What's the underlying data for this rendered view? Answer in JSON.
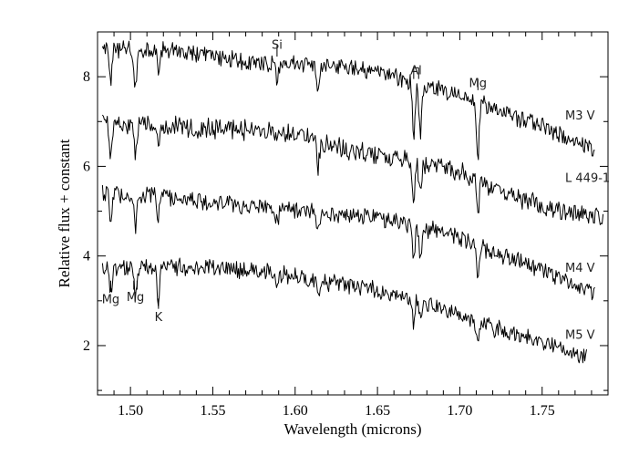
{
  "chart_data": {
    "type": "line",
    "xlabel": "Wavelength (microns)",
    "ylabel": "Relative flux + constant",
    "xlim": [
      1.48,
      1.79
    ],
    "ylim": [
      0.9,
      9.0
    ],
    "x_ticks": [
      1.5,
      1.55,
      1.6,
      1.65,
      1.7,
      1.75
    ],
    "x_tick_labels": [
      "1.50",
      "1.55",
      "1.60",
      "1.65",
      "1.70",
      "1.75"
    ],
    "y_ticks": [
      2,
      4,
      6,
      8
    ],
    "y_tick_labels": [
      "2",
      "4",
      "6",
      "8"
    ],
    "grid": false,
    "series": [
      {
        "name": "M3 V",
        "x_range": [
          1.483,
          1.782
        ],
        "noise": 0.17,
        "anchors": [
          [
            1.48,
            8.6
          ],
          [
            1.52,
            8.6
          ],
          [
            1.55,
            8.45
          ],
          [
            1.58,
            8.3
          ],
          [
            1.6,
            8.3
          ],
          [
            1.63,
            8.2
          ],
          [
            1.65,
            8.1
          ],
          [
            1.67,
            7.9
          ],
          [
            1.7,
            7.6
          ],
          [
            1.72,
            7.3
          ],
          [
            1.75,
            6.9
          ],
          [
            1.78,
            6.4
          ]
        ],
        "absorptions": [
          [
            1.488,
            0.7
          ],
          [
            1.503,
            0.9
          ],
          [
            1.517,
            0.5
          ],
          [
            1.589,
            0.4
          ],
          [
            1.614,
            0.6
          ],
          [
            1.672,
            1.3
          ],
          [
            1.676,
            1.1
          ],
          [
            1.711,
            1.2
          ]
        ]
      },
      {
        "name": "L 449-1",
        "x_range": [
          1.483,
          1.787
        ],
        "noise": 0.2,
        "anchors": [
          [
            1.48,
            7.0
          ],
          [
            1.52,
            6.9
          ],
          [
            1.55,
            6.85
          ],
          [
            1.58,
            6.8
          ],
          [
            1.6,
            6.7
          ],
          [
            1.62,
            6.45
          ],
          [
            1.65,
            6.25
          ],
          [
            1.68,
            6.0
          ],
          [
            1.7,
            5.9
          ],
          [
            1.72,
            5.5
          ],
          [
            1.75,
            5.1
          ],
          [
            1.78,
            4.9
          ]
        ],
        "absorptions": [
          [
            1.488,
            0.8
          ],
          [
            1.503,
            0.8
          ],
          [
            1.517,
            0.4
          ],
          [
            1.589,
            0.3
          ],
          [
            1.614,
            0.5
          ],
          [
            1.672,
            0.9
          ],
          [
            1.676,
            0.7
          ],
          [
            1.711,
            0.8
          ]
        ]
      },
      {
        "name": "M4 V",
        "x_range": [
          1.483,
          1.782
        ],
        "noise": 0.17,
        "anchors": [
          [
            1.48,
            5.4
          ],
          [
            1.52,
            5.35
          ],
          [
            1.55,
            5.2
          ],
          [
            1.58,
            5.1
          ],
          [
            1.6,
            5.0
          ],
          [
            1.63,
            4.9
          ],
          [
            1.65,
            4.85
          ],
          [
            1.68,
            4.6
          ],
          [
            1.7,
            4.4
          ],
          [
            1.72,
            4.1
          ],
          [
            1.75,
            3.7
          ],
          [
            1.78,
            3.2
          ]
        ],
        "absorptions": [
          [
            1.488,
            0.6
          ],
          [
            1.503,
            0.7
          ],
          [
            1.517,
            0.5
          ],
          [
            1.589,
            0.3
          ],
          [
            1.614,
            0.4
          ],
          [
            1.672,
            0.8
          ],
          [
            1.676,
            0.7
          ],
          [
            1.711,
            0.9
          ]
        ]
      },
      {
        "name": "M5 V",
        "x_range": [
          1.483,
          1.777
        ],
        "noise": 0.17,
        "anchors": [
          [
            1.48,
            3.7
          ],
          [
            1.52,
            3.75
          ],
          [
            1.55,
            3.75
          ],
          [
            1.58,
            3.65
          ],
          [
            1.6,
            3.55
          ],
          [
            1.62,
            3.4
          ],
          [
            1.65,
            3.25
          ],
          [
            1.68,
            2.95
          ],
          [
            1.7,
            2.65
          ],
          [
            1.72,
            2.4
          ],
          [
            1.75,
            2.1
          ],
          [
            1.78,
            1.7
          ]
        ],
        "absorptions": [
          [
            1.488,
            0.5
          ],
          [
            1.503,
            0.6
          ],
          [
            1.517,
            0.8
          ],
          [
            1.589,
            0.3
          ],
          [
            1.614,
            0.4
          ],
          [
            1.672,
            0.5
          ],
          [
            1.676,
            0.4
          ],
          [
            1.711,
            0.5
          ]
        ]
      }
    ],
    "series_labels": [
      {
        "text": "M3 V",
        "x": 1.764,
        "y": 7.05
      },
      {
        "text": "L 449-1",
        "x": 1.764,
        "y": 5.65
      },
      {
        "text": "M4 V",
        "x": 1.764,
        "y": 3.65
      },
      {
        "text": "M5 V",
        "x": 1.764,
        "y": 2.15
      }
    ],
    "annotations": [
      {
        "text": "Si",
        "x": 1.589,
        "y": 8.62,
        "ticks": [
          1.589
        ],
        "tick_y": [
          8.45,
          8.7
        ]
      },
      {
        "text": "Al",
        "x": 1.6735,
        "y": 8.05,
        "ticks": [
          1.672,
          1.675
        ],
        "tick_y": [
          7.95,
          8.2
        ],
        "bar": true
      },
      {
        "text": "Mg",
        "x": 1.711,
        "y": 7.77,
        "ticks": [
          1.711
        ],
        "tick_y": [
          7.7,
          7.95
        ]
      },
      {
        "text": "Mg",
        "x": 1.488,
        "y": 2.95,
        "ticks": [
          1.488
        ],
        "tick_y": [
          3.2,
          3.45
        ]
      },
      {
        "text": "Mg",
        "x": 1.503,
        "y": 3.0,
        "ticks": [
          1.502,
          1.504
        ],
        "tick_y": [
          3.25,
          3.45
        ]
      },
      {
        "text": "K",
        "x": 1.517,
        "y": 2.55,
        "ticks": [
          1.517
        ],
        "tick_y": [
          2.82,
          3.05
        ]
      }
    ]
  }
}
